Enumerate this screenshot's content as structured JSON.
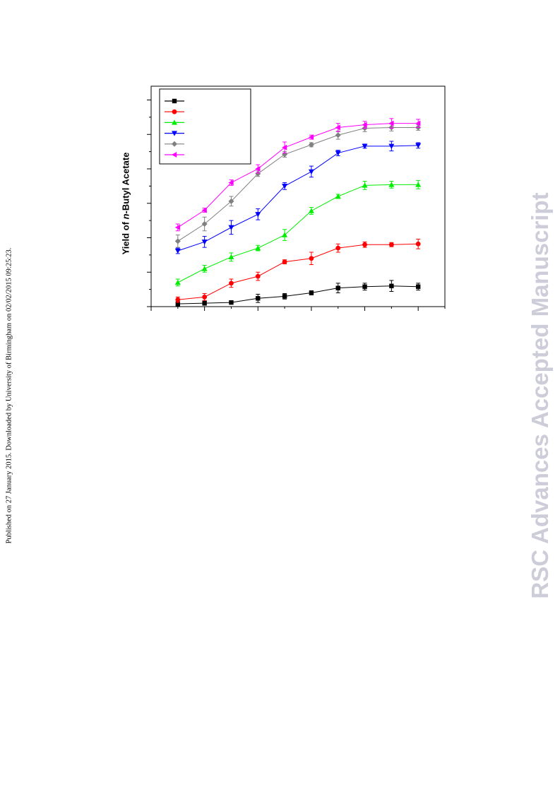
{
  "side_note": "Published on 27 January 2015. Downloaded by University of Birmingham on 02/02/2015 09:25:23.",
  "watermark": "RSC Advances Accepted Manuscript",
  "chart_data": {
    "type": "line",
    "ylabel_prefix": "Yield of ",
    "ylabel_italic": "n",
    "ylabel_suffix": "-Butyl Acetate",
    "xlabel": "",
    "title": "",
    "x": [
      1,
      2,
      3,
      4,
      5,
      6,
      7,
      8,
      9,
      10
    ],
    "xlim": [
      0,
      11
    ],
    "ylim": [
      0,
      32
    ],
    "grid": false,
    "legend": "top-left",
    "series": [
      {
        "color": "#000000",
        "marker": "square",
        "values": [
          0.4,
          0.5,
          0.6,
          1.2,
          1.5,
          2.0,
          2.7,
          2.9,
          3.0,
          2.9
        ],
        "errors": [
          0.3,
          0.3,
          0.2,
          0.6,
          0.4,
          0.3,
          0.7,
          0.5,
          0.8,
          0.5
        ]
      },
      {
        "color": "#ff0000",
        "marker": "circle",
        "values": [
          1.0,
          1.4,
          3.4,
          4.4,
          6.5,
          7.0,
          8.5,
          9.0,
          9.0,
          9.1
        ],
        "errors": [
          0.4,
          0.5,
          0.6,
          0.6,
          0.3,
          0.9,
          0.6,
          0.4,
          0.3,
          0.7
        ]
      },
      {
        "color": "#00ee00",
        "marker": "triangle-up",
        "values": [
          3.5,
          5.5,
          7.2,
          8.5,
          10.4,
          13.9,
          16.0,
          17.6,
          17.7,
          17.7
        ],
        "errors": [
          0.5,
          0.5,
          0.6,
          0.4,
          0.8,
          0.5,
          0.3,
          0.6,
          0.5,
          0.6
        ]
      },
      {
        "color": "#0000ff",
        "marker": "triangle-down",
        "values": [
          8.1,
          9.4,
          11.5,
          13.4,
          17.5,
          19.6,
          22.3,
          23.3,
          23.3,
          23.4
        ],
        "errors": [
          0.4,
          0.8,
          1.0,
          0.8,
          0.5,
          0.8,
          0.4,
          0.3,
          0.7,
          0.4
        ]
      },
      {
        "color": "#808080",
        "marker": "diamond",
        "values": [
          9.5,
          12.0,
          15.3,
          19.3,
          22.1,
          23.5,
          24.9,
          25.9,
          26.0,
          26.0
        ],
        "errors": [
          0.9,
          1.0,
          0.7,
          0.4,
          0.4,
          0.3,
          0.6,
          0.5,
          0.5,
          0.4
        ]
      },
      {
        "color": "#ff00ff",
        "marker": "triangle-left",
        "values": [
          11.5,
          14.0,
          18.0,
          20.0,
          23.1,
          24.6,
          26.0,
          26.4,
          26.6,
          26.6
        ],
        "errors": [
          0.5,
          0.3,
          0.4,
          0.6,
          0.8,
          0.3,
          0.6,
          0.5,
          0.7,
          0.6
        ]
      }
    ]
  }
}
